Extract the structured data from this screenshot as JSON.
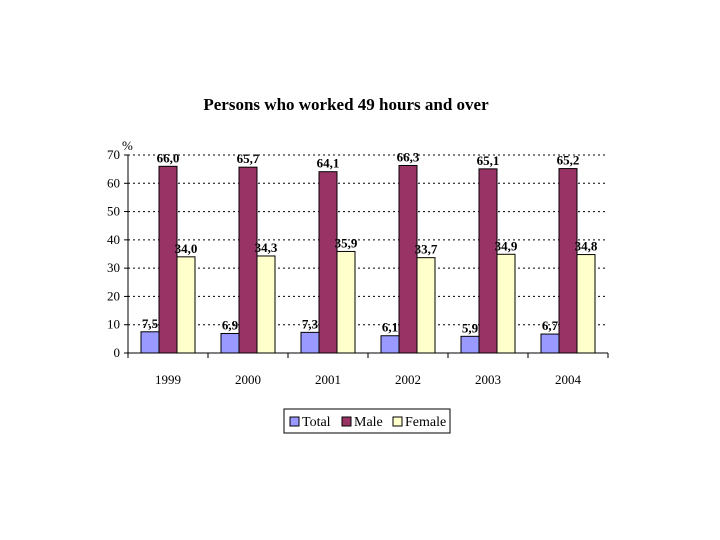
{
  "chart_data": {
    "type": "bar",
    "title": "Persons who worked 49 hours and over",
    "unit_label": "%",
    "xlabel": "",
    "ylabel": "",
    "categories": [
      "1999",
      "2000",
      "2001",
      "2002",
      "2003",
      "2004"
    ],
    "ylim": [
      0,
      70
    ],
    "yticks": [
      0,
      10,
      20,
      30,
      40,
      50,
      60,
      70
    ],
    "grid": true,
    "legend_position": "bottom",
    "series": [
      {
        "name": "Total",
        "color": "#9999ff",
        "values": [
          7.5,
          6.9,
          7.3,
          6.1,
          5.9,
          6.7
        ],
        "labels": [
          "7,5",
          "6,9",
          "7,3",
          "6,1",
          "5,9",
          "6,7"
        ]
      },
      {
        "name": "Male",
        "color": "#993366",
        "values": [
          66.0,
          65.7,
          64.1,
          66.3,
          65.1,
          65.2
        ],
        "labels": [
          "66,0",
          "65,7",
          "64,1",
          "66,3",
          "65,1",
          "65,2"
        ]
      },
      {
        "name": "Female",
        "color": "#ffffcc",
        "values": [
          34.0,
          34.3,
          35.9,
          33.7,
          34.9,
          34.8
        ],
        "labels": [
          "34,0",
          "34,3",
          "35,9",
          "33,7",
          "34,9",
          "34,8"
        ]
      }
    ]
  }
}
